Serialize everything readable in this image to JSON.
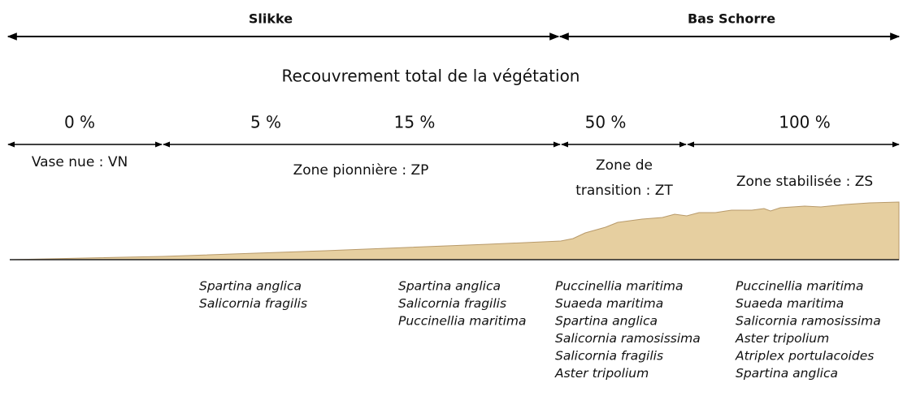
{
  "header": {
    "left": "Slikke",
    "right": "Bas Schorre",
    "title": "Recouvrement total de la végétation"
  },
  "coverage": [
    "0 %",
    "5 %",
    "15 %",
    "50 %",
    "100 %"
  ],
  "zones": [
    [
      "Vase nue : VN"
    ],
    [
      "Zone pionnière : ZP"
    ],
    [
      "Zone de",
      "transition : ZT"
    ],
    [
      "Zone stabilisée : ZS"
    ]
  ],
  "species": [
    [
      "Spartina anglica",
      "Salicornia fragilis"
    ],
    [
      "Spartina anglica",
      "Salicornia fragilis",
      "Puccinellia maritima"
    ],
    [
      "Puccinellia maritima",
      "Suaeda maritima",
      "Spartina anglica",
      "Salicornia ramosissima",
      "Salicornia fragilis",
      "Aster tripolium"
    ],
    [
      "Puccinellia maritima",
      "Suaeda maritima",
      "Salicornia ramosissima",
      "Aster tripolium",
      "Atriplex portulacoides",
      "Spartina anglica"
    ]
  ]
}
